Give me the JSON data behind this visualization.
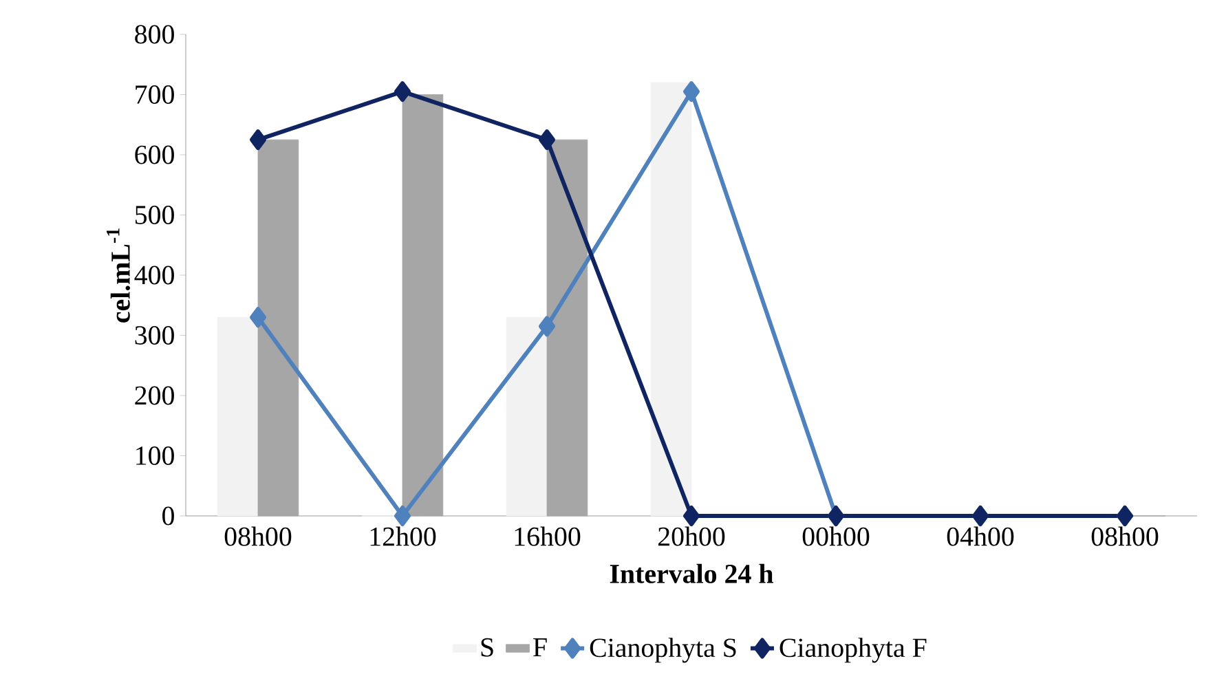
{
  "chart_data": {
    "type": "bar",
    "xlabel": "Intervalo 24 h",
    "ylabel": "cel.mL$^{-1}$",
    "categories": [
      "08h00",
      "12h00",
      "16h00",
      "20h00",
      "00h00",
      "04h00",
      "08h00"
    ],
    "series": [
      {
        "name": "S",
        "color": "#f2f2f2",
        "values": [
          330,
          0,
          330,
          720,
          0,
          0,
          0
        ]
      },
      {
        "name": "F",
        "color": "#a6a6a6",
        "values": [
          625,
          700,
          625,
          0,
          0,
          0,
          0
        ]
      },
      {
        "name": "Cianophyta S",
        "type": "line",
        "color": "#4f81bd",
        "values": [
          330,
          0,
          315,
          705,
          0,
          0,
          0
        ]
      },
      {
        "name": "Cianophyta F",
        "type": "line",
        "color": "#0f2461",
        "values": [
          625,
          705,
          625,
          0,
          0,
          0,
          0
        ]
      }
    ],
    "ylim": [
      0,
      800
    ],
    "yticks": [
      0,
      100,
      200,
      300,
      400,
      500,
      600,
      700,
      800
    ],
    "marker": "diamond",
    "legend": "bottom",
    "grid": false
  }
}
